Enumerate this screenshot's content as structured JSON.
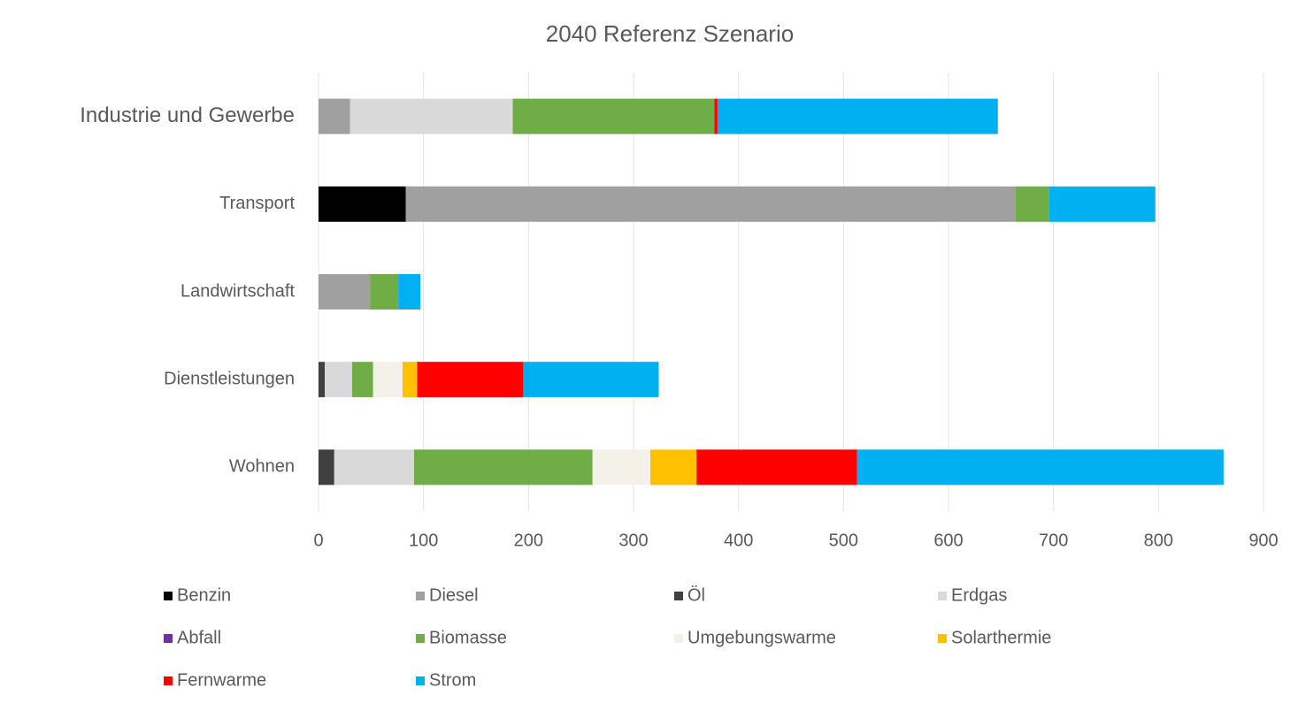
{
  "chart_data": {
    "type": "bar",
    "orientation": "horizontal",
    "stacked": true,
    "title": "2040 Referenz Szenario",
    "categories": [
      "Industrie und Gewerbe",
      "Transport",
      "Landwirtschaft",
      "Dienstleistungen",
      "Wohnen"
    ],
    "series": [
      {
        "name": "Benzin",
        "color": "#000000",
        "values": [
          0,
          83,
          0,
          0,
          0
        ]
      },
      {
        "name": "Diesel",
        "color": "#a0a0a0",
        "values": [
          30,
          581,
          49,
          0,
          0
        ]
      },
      {
        "name": "Öl",
        "color": "#404040",
        "values": [
          0,
          0,
          0,
          6,
          15
        ]
      },
      {
        "name": "Erdgas",
        "color": "#d9d9d9",
        "values": [
          155,
          0,
          0,
          26,
          76
        ]
      },
      {
        "name": "Abfall",
        "color": "#7030a0",
        "values": [
          0,
          0,
          0,
          0,
          0
        ]
      },
      {
        "name": "Biomasse",
        "color": "#70ad47",
        "values": [
          192,
          32,
          27,
          20,
          170
        ]
      },
      {
        "name": "Umgebungswarme",
        "color": "#f4f1e8",
        "values": [
          0,
          0,
          0,
          28,
          55
        ]
      },
      {
        "name": "Solarthermie",
        "color": "#ffc000",
        "values": [
          0,
          0,
          0,
          14,
          44
        ]
      },
      {
        "name": "Fernwarme",
        "color": "#ff0000",
        "values": [
          3,
          0,
          0,
          101,
          153
        ]
      },
      {
        "name": "Strom",
        "color": "#00b0f0",
        "values": [
          267,
          101,
          21,
          129,
          349
        ]
      }
    ],
    "xlim": [
      0,
      900
    ],
    "xticks": [
      0,
      100,
      200,
      300,
      400,
      500,
      600,
      700,
      800,
      900
    ],
    "grid": true,
    "legend": "bottom"
  }
}
